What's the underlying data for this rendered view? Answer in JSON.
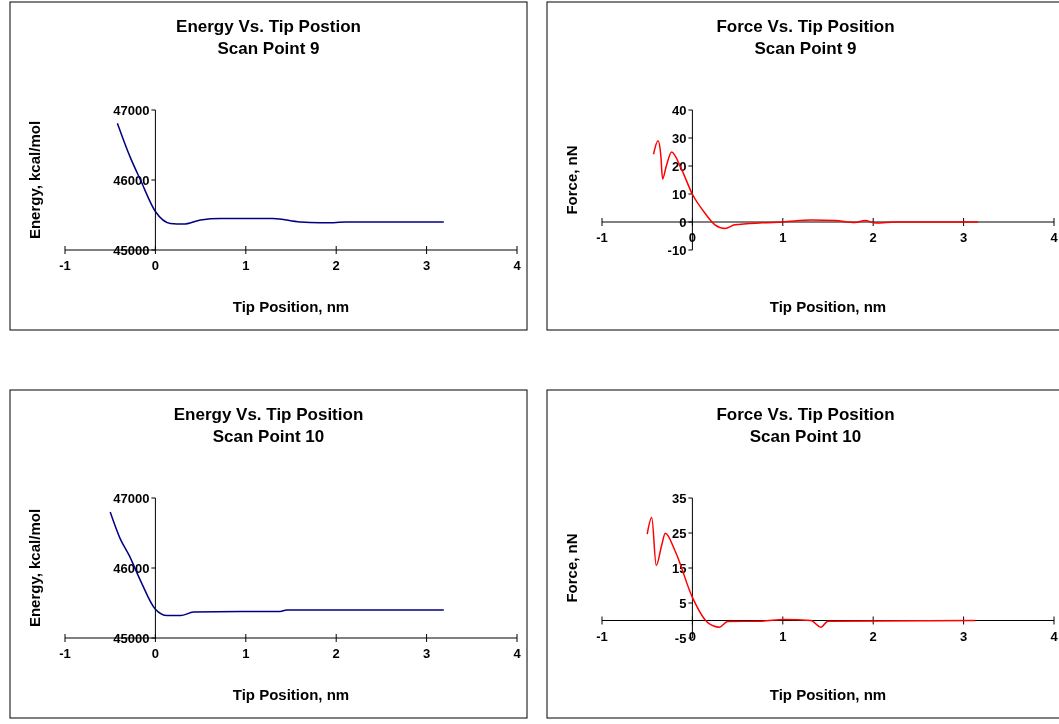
{
  "chart_data": [
    {
      "type": "line",
      "title": "Energy Vs. Tip Postion\nScan Point 9",
      "xlabel": "Tip Position, nm",
      "ylabel": "Energy, kcal/mol",
      "xlim": [
        -1,
        4
      ],
      "xticks": [
        -1,
        0,
        1,
        2,
        3,
        4
      ],
      "ylim": [
        45000,
        47000
      ],
      "yticks": [
        45000,
        46000,
        47000
      ],
      "grid": false,
      "series": [
        {
          "color": "#000080",
          "x": [
            -0.42,
            -0.28,
            -0.165,
            0,
            0.165,
            0.31,
            0.5,
            0.72,
            1.3,
            1.6,
            1.82,
            1.97,
            2.11,
            3.19
          ],
          "values": [
            46810,
            46330,
            46000,
            45550,
            45380,
            45370,
            45430,
            45450,
            45450,
            45400,
            45390,
            45390,
            45400,
            45400
          ]
        }
      ]
    },
    {
      "type": "line",
      "title": "Force Vs. Tip Position\nScan Point 9",
      "xlabel": "Tip Position, nm",
      "ylabel": "Force, nN",
      "xlim": [
        -1,
        4
      ],
      "xticks": [
        -1,
        0,
        1,
        2,
        3,
        4
      ],
      "ylim": [
        -10,
        40
      ],
      "yticks": [
        -10,
        0,
        10,
        20,
        30,
        40
      ],
      "grid": false,
      "series": [
        {
          "color": "#ff0000",
          "x": [
            -0.43,
            -0.38,
            -0.35,
            -0.33,
            -0.29,
            -0.23,
            -0.12,
            0,
            0.14,
            0.25,
            0.36,
            0.47,
            0.77,
            1,
            1.32,
            1.58,
            1.8,
            1.91,
            2.03,
            2.25,
            3.16
          ],
          "values": [
            24.2,
            29,
            24,
            15.4,
            19.8,
            25,
            18.8,
            9.9,
            3.1,
            -1,
            -2.3,
            -1,
            -0.3,
            0,
            0.7,
            0.5,
            -0.2,
            0.5,
            -0.4,
            0,
            0
          ]
        }
      ]
    },
    {
      "type": "line",
      "title": "Energy Vs. Tip Position\nScan Point 10",
      "xlabel": "Tip Position, nm",
      "ylabel": "Energy, kcal/mol",
      "xlim": [
        -1,
        4
      ],
      "xticks": [
        -1,
        0,
        1,
        2,
        3,
        4
      ],
      "ylim": [
        45000,
        47000
      ],
      "yticks": [
        45000,
        46000,
        47000
      ],
      "grid": false,
      "series": [
        {
          "color": "#000080",
          "x": [
            -0.5,
            -0.39,
            -0.29,
            -0.165,
            0,
            0.13,
            0.28,
            0.42,
            0.94,
            1.38,
            1.45,
            3.19
          ],
          "values": [
            46800,
            46420,
            46180,
            45820,
            45410,
            45320,
            45320,
            45370,
            45380,
            45380,
            45400,
            45400
          ]
        }
      ]
    },
    {
      "type": "line",
      "title": "Force Vs. Tip Position\nScan Point 10",
      "xlabel": "Tip Position, nm",
      "ylabel": "Force, nN",
      "xlim": [
        -1,
        4
      ],
      "xticks": [
        -1,
        0,
        1,
        2,
        3,
        4
      ],
      "ylim": [
        -5,
        35
      ],
      "yticks": [
        -5,
        5,
        15,
        25,
        35
      ],
      "grid": false,
      "series": [
        {
          "color": "#ff0000",
          "x": [
            -0.5,
            -0.45,
            -0.4,
            -0.34,
            -0.3,
            -0.19,
            0,
            0.17,
            0.3,
            0.39,
            0.76,
            1.02,
            1.31,
            1.42,
            1.5,
            3.13
          ],
          "values": [
            24.7,
            29.4,
            15.7,
            21.5,
            24.9,
            19.8,
            6.6,
            -0.6,
            -1.9,
            -0.3,
            -0.2,
            0.3,
            0,
            -1.9,
            -0.2,
            0
          ]
        }
      ]
    }
  ]
}
